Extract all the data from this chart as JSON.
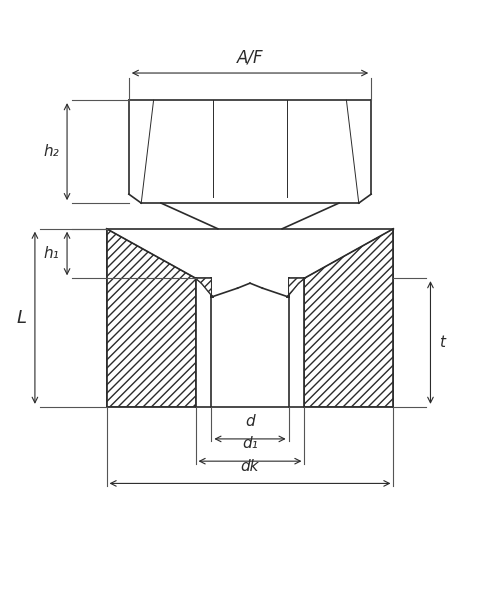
{
  "background_color": "#ffffff",
  "line_color": "#2b2b2b",
  "figsize": [
    5.0,
    5.96
  ],
  "dpi": 100,
  "labels": {
    "AF": "A/F",
    "h2": "h₂",
    "h1": "h₁",
    "L": "L",
    "t": "t",
    "d": "d",
    "d1": "d₁",
    "dk": "dk"
  }
}
